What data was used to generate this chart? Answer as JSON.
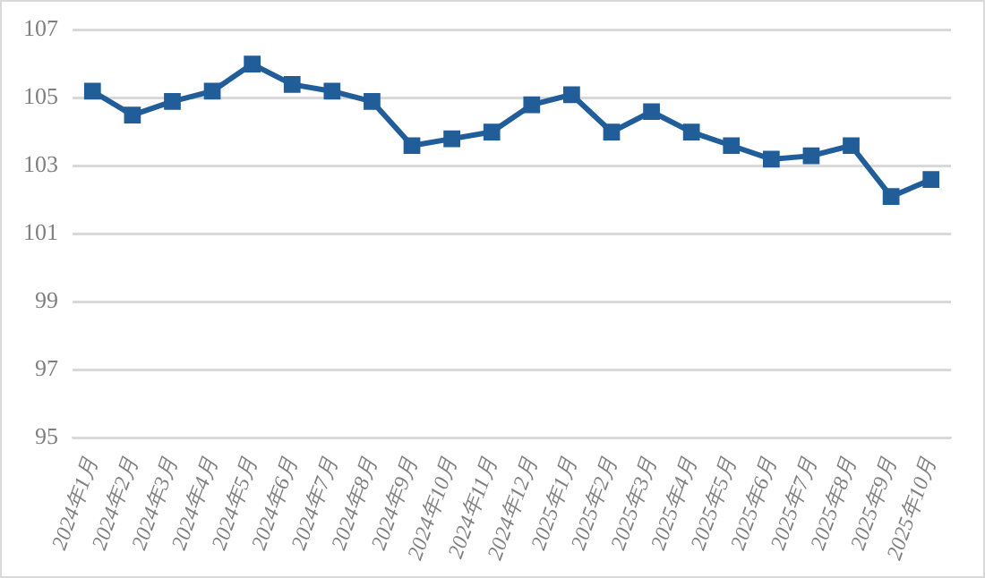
{
  "chart_data": {
    "type": "line",
    "categories": [
      "2024年1月",
      "2024年2月",
      "2024年3月",
      "2024年4月",
      "2024年5月",
      "2024年6月",
      "2024年7月",
      "2024年8月",
      "2024年9月",
      "2024年10月",
      "2024年11月",
      "2024年12月",
      "2025年1月",
      "2025年2月",
      "2025年3月",
      "2025年4月",
      "2025年5月",
      "2025年6月",
      "2025年7月",
      "2025年8月",
      "2025年9月",
      "2025年10月"
    ],
    "series": [
      {
        "color": "#215e99",
        "values": [
          105.2,
          104.5,
          104.9,
          105.2,
          106.0,
          105.4,
          105.2,
          104.9,
          103.6,
          103.8,
          104.0,
          104.8,
          105.1,
          104.0,
          104.6,
          104.0,
          103.6,
          103.2,
          103.3,
          103.6,
          102.1,
          102.6
        ]
      }
    ],
    "ylim": [
      95,
      107
    ],
    "yticks": [
      95,
      97,
      99,
      101,
      103,
      105,
      107
    ],
    "grid": "y",
    "marker": "square",
    "line_style": "solid",
    "legend": false
  }
}
